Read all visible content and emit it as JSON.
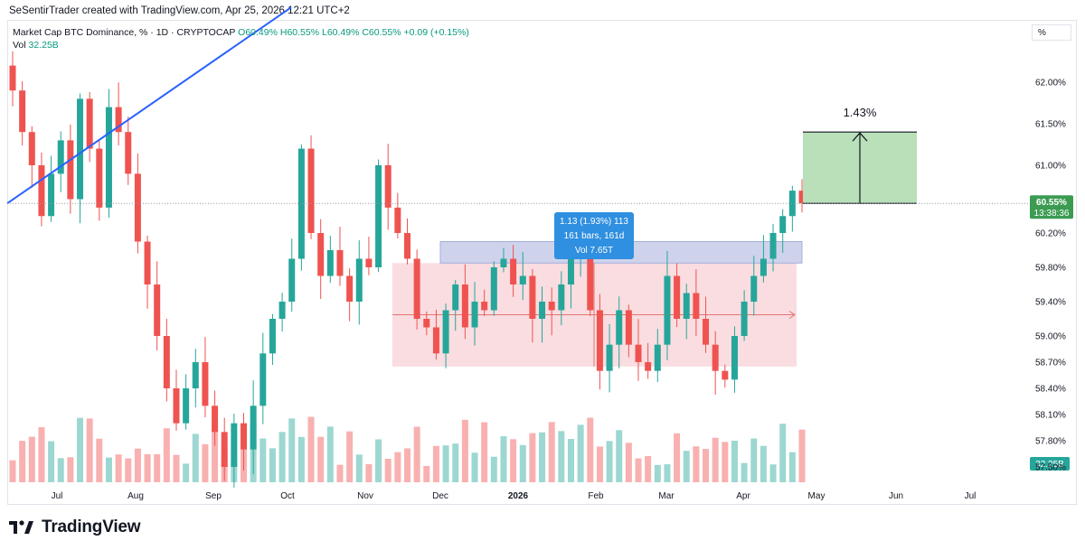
{
  "header": {
    "credit": "SeSentirTrader created with TradingView.com, Apr 25, 2026 12:21 UTC+2"
  },
  "legend": {
    "symbol": "Market Cap BTC Dominance, % · 1D · CRYPTOCAP",
    "ohlc": "O60.49% H60.55% L60.49% C60.55% +0.09 (+0.15%)",
    "vol_label": "Vol",
    "vol_value": "32.25B"
  },
  "scale_button": "%",
  "footer": {
    "brand": "TradingView"
  },
  "colors": {
    "up": "#26a69a",
    "down": "#ef5350",
    "trendline": "#2962ff",
    "range_box": "#f8d7da",
    "zone_box": "#c9cfe9",
    "target_box": "#b9e0b8",
    "price_label": "#3c9b52",
    "measure_tooltip": "#2f8fe0"
  },
  "price_label": {
    "value": "60.55%",
    "countdown": "13:38:36"
  },
  "volume_label": "32.25B",
  "measure_tooltip": {
    "line1": "1.13 (1.93%) 113",
    "line2": "161 bars, 161d",
    "line3": "Vol 7.65T"
  },
  "target_label": "1.43%",
  "chart_data": {
    "type": "candlestick",
    "title": "Market Cap BTC Dominance, % · 1D · CRYPTOCAP",
    "x_ticks": [
      "Jul",
      "Aug",
      "Sep",
      "Oct",
      "Nov",
      "Dec",
      "2026",
      "Feb",
      "Mar",
      "Apr",
      "May",
      "Jun",
      "Jul"
    ],
    "y_ticks": [
      "62.00%",
      "61.50%",
      "61.00%",
      "60.20%",
      "59.80%",
      "59.40%",
      "59.00%",
      "58.70%",
      "58.40%",
      "58.10%",
      "57.80%",
      "57.50%"
    ],
    "y_tick_values": [
      62.0,
      61.5,
      61.0,
      60.2,
      59.8,
      59.4,
      59.0,
      58.7,
      58.4,
      58.1,
      57.8,
      57.5
    ],
    "last_close": 60.55,
    "last_volume": "32.25B",
    "closes": [
      61.9,
      61.4,
      61.0,
      60.4,
      60.9,
      61.3,
      60.6,
      61.8,
      61.2,
      60.5,
      61.7,
      61.4,
      60.9,
      60.1,
      59.6,
      59.0,
      58.4,
      58.0,
      58.4,
      58.7,
      58.2,
      57.9,
      57.5,
      58.0,
      57.7,
      58.2,
      58.8,
      59.2,
      59.4,
      59.9,
      61.2,
      60.2,
      59.7,
      60.0,
      59.7,
      59.4,
      59.9,
      59.8,
      61.0,
      60.5,
      60.2,
      59.9,
      59.2,
      59.1,
      58.8,
      59.3,
      59.6,
      59.1,
      59.4,
      59.3,
      59.8,
      59.9,
      59.6,
      59.7,
      59.2,
      59.4,
      59.3,
      59.6,
      59.9,
      60.0,
      59.3,
      58.6,
      58.9,
      59.3,
      58.9,
      58.7,
      58.6,
      58.9,
      59.7,
      59.2,
      59.5,
      59.2,
      58.9,
      58.6,
      58.5,
      59.0,
      59.4,
      59.7,
      59.9,
      60.2,
      60.4,
      60.7,
      60.55
    ],
    "range_box": {
      "top": 59.85,
      "bottom": 58.65,
      "start": "Nov",
      "end": "Apr"
    },
    "zone_box": {
      "top": 60.1,
      "bottom": 59.85
    },
    "target_box": {
      "top": 61.4,
      "bottom": 60.55,
      "label": "1.43%"
    },
    "trendline": {
      "from": 60.55,
      "to": 62.9
    },
    "grid": true,
    "legend_position": "top-left"
  }
}
